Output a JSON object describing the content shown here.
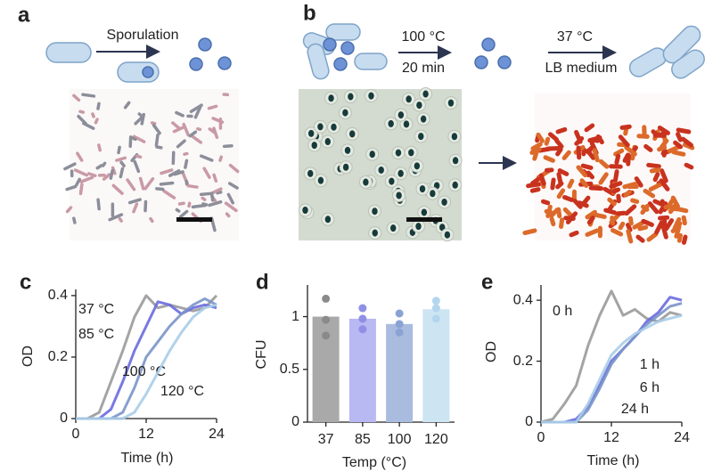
{
  "panels": {
    "labels": [
      "a",
      "b",
      "c",
      "d",
      "e"
    ],
    "a": {
      "step": "Sporulation"
    },
    "b": {
      "heat": "100 °C",
      "duration": "20 min",
      "growth_temp": "37 °C",
      "medium": "LB medium"
    }
  },
  "chart_data": [
    {
      "type": "line",
      "ylabel": "OD",
      "xlabel": "Time (h)",
      "x": [
        0,
        2,
        4,
        6,
        8,
        10,
        12,
        14,
        16,
        18,
        20,
        22,
        24
      ],
      "xlim": [
        0,
        24
      ],
      "xticks": [
        0,
        12,
        24
      ],
      "ylim": [
        0,
        0.42
      ],
      "yticks": [
        0,
        0.2,
        0.4
      ],
      "series": [
        {
          "name": "37 °C",
          "color": "#9a9a9a",
          "values": [
            0,
            0,
            0.02,
            0.12,
            0.22,
            0.33,
            0.4,
            0.36,
            0.37,
            0.36,
            0.35,
            0.36,
            0.4
          ]
        },
        {
          "name": "85 °C",
          "color": "#6a6ae0",
          "values": [
            0,
            0,
            0,
            0.03,
            0.12,
            0.22,
            0.3,
            0.38,
            0.37,
            0.34,
            0.36,
            0.37,
            0.36
          ]
        },
        {
          "name": "100 °C",
          "color": "#7a95c8",
          "values": [
            0,
            0,
            0,
            0,
            0.02,
            0.1,
            0.2,
            0.25,
            0.3,
            0.34,
            0.37,
            0.39,
            0.37
          ]
        },
        {
          "name": "120 °C",
          "color": "#a8cde8",
          "values": [
            0,
            0,
            0,
            0,
            0,
            0.02,
            0.08,
            0.15,
            0.22,
            0.28,
            0.33,
            0.36,
            0.37
          ]
        }
      ]
    },
    {
      "type": "bar",
      "ylabel": "CFU",
      "xlabel": "Temp (°C)",
      "categories": [
        "37",
        "85",
        "100",
        "120"
      ],
      "values": [
        1.0,
        0.98,
        0.93,
        1.07
      ],
      "colors": [
        "#a9a9a9",
        "#b8b8f2",
        "#a9bbdf",
        "#cde4f3"
      ],
      "point_colors": [
        "#8a8a8a",
        "#8f8fe6",
        "#8aa3d3",
        "#b3d6ee"
      ],
      "replicates": [
        [
          1.17,
          0.97,
          0.82
        ],
        [
          1.08,
          0.98,
          0.88
        ],
        [
          1.03,
          0.93,
          0.85
        ],
        [
          1.15,
          1.08,
          0.98
        ]
      ],
      "ylim": [
        0,
        1.3
      ],
      "yticks": [
        0,
        0.5,
        1
      ]
    },
    {
      "type": "line",
      "ylabel": "OD",
      "xlabel": "Time (h)",
      "x": [
        0,
        2,
        4,
        6,
        8,
        10,
        12,
        14,
        16,
        18,
        20,
        22,
        24
      ],
      "xlim": [
        0,
        24
      ],
      "xticks": [
        0,
        12,
        24
      ],
      "ylim": [
        0,
        0.45
      ],
      "yticks": [
        0,
        0.2,
        0.4
      ],
      "series": [
        {
          "name": "0 h",
          "color": "#9a9a9a",
          "values": [
            0,
            0.01,
            0.06,
            0.12,
            0.25,
            0.35,
            0.43,
            0.35,
            0.37,
            0.34,
            0.33,
            0.36,
            0.35
          ]
        },
        {
          "name": "1 h",
          "color": "#6a6ae0",
          "values": [
            0,
            0,
            0,
            0.01,
            0.05,
            0.12,
            0.2,
            0.24,
            0.28,
            0.33,
            0.36,
            0.41,
            0.4
          ]
        },
        {
          "name": "6 h",
          "color": "#7a95c8",
          "values": [
            0,
            0,
            0,
            0,
            0.04,
            0.11,
            0.19,
            0.24,
            0.28,
            0.32,
            0.35,
            0.38,
            0.39
          ]
        },
        {
          "name": "24 h",
          "color": "#a8cde8",
          "values": [
            0,
            0,
            0,
            0,
            0.06,
            0.14,
            0.22,
            0.26,
            0.29,
            0.31,
            0.33,
            0.34,
            0.35
          ]
        }
      ]
    }
  ]
}
